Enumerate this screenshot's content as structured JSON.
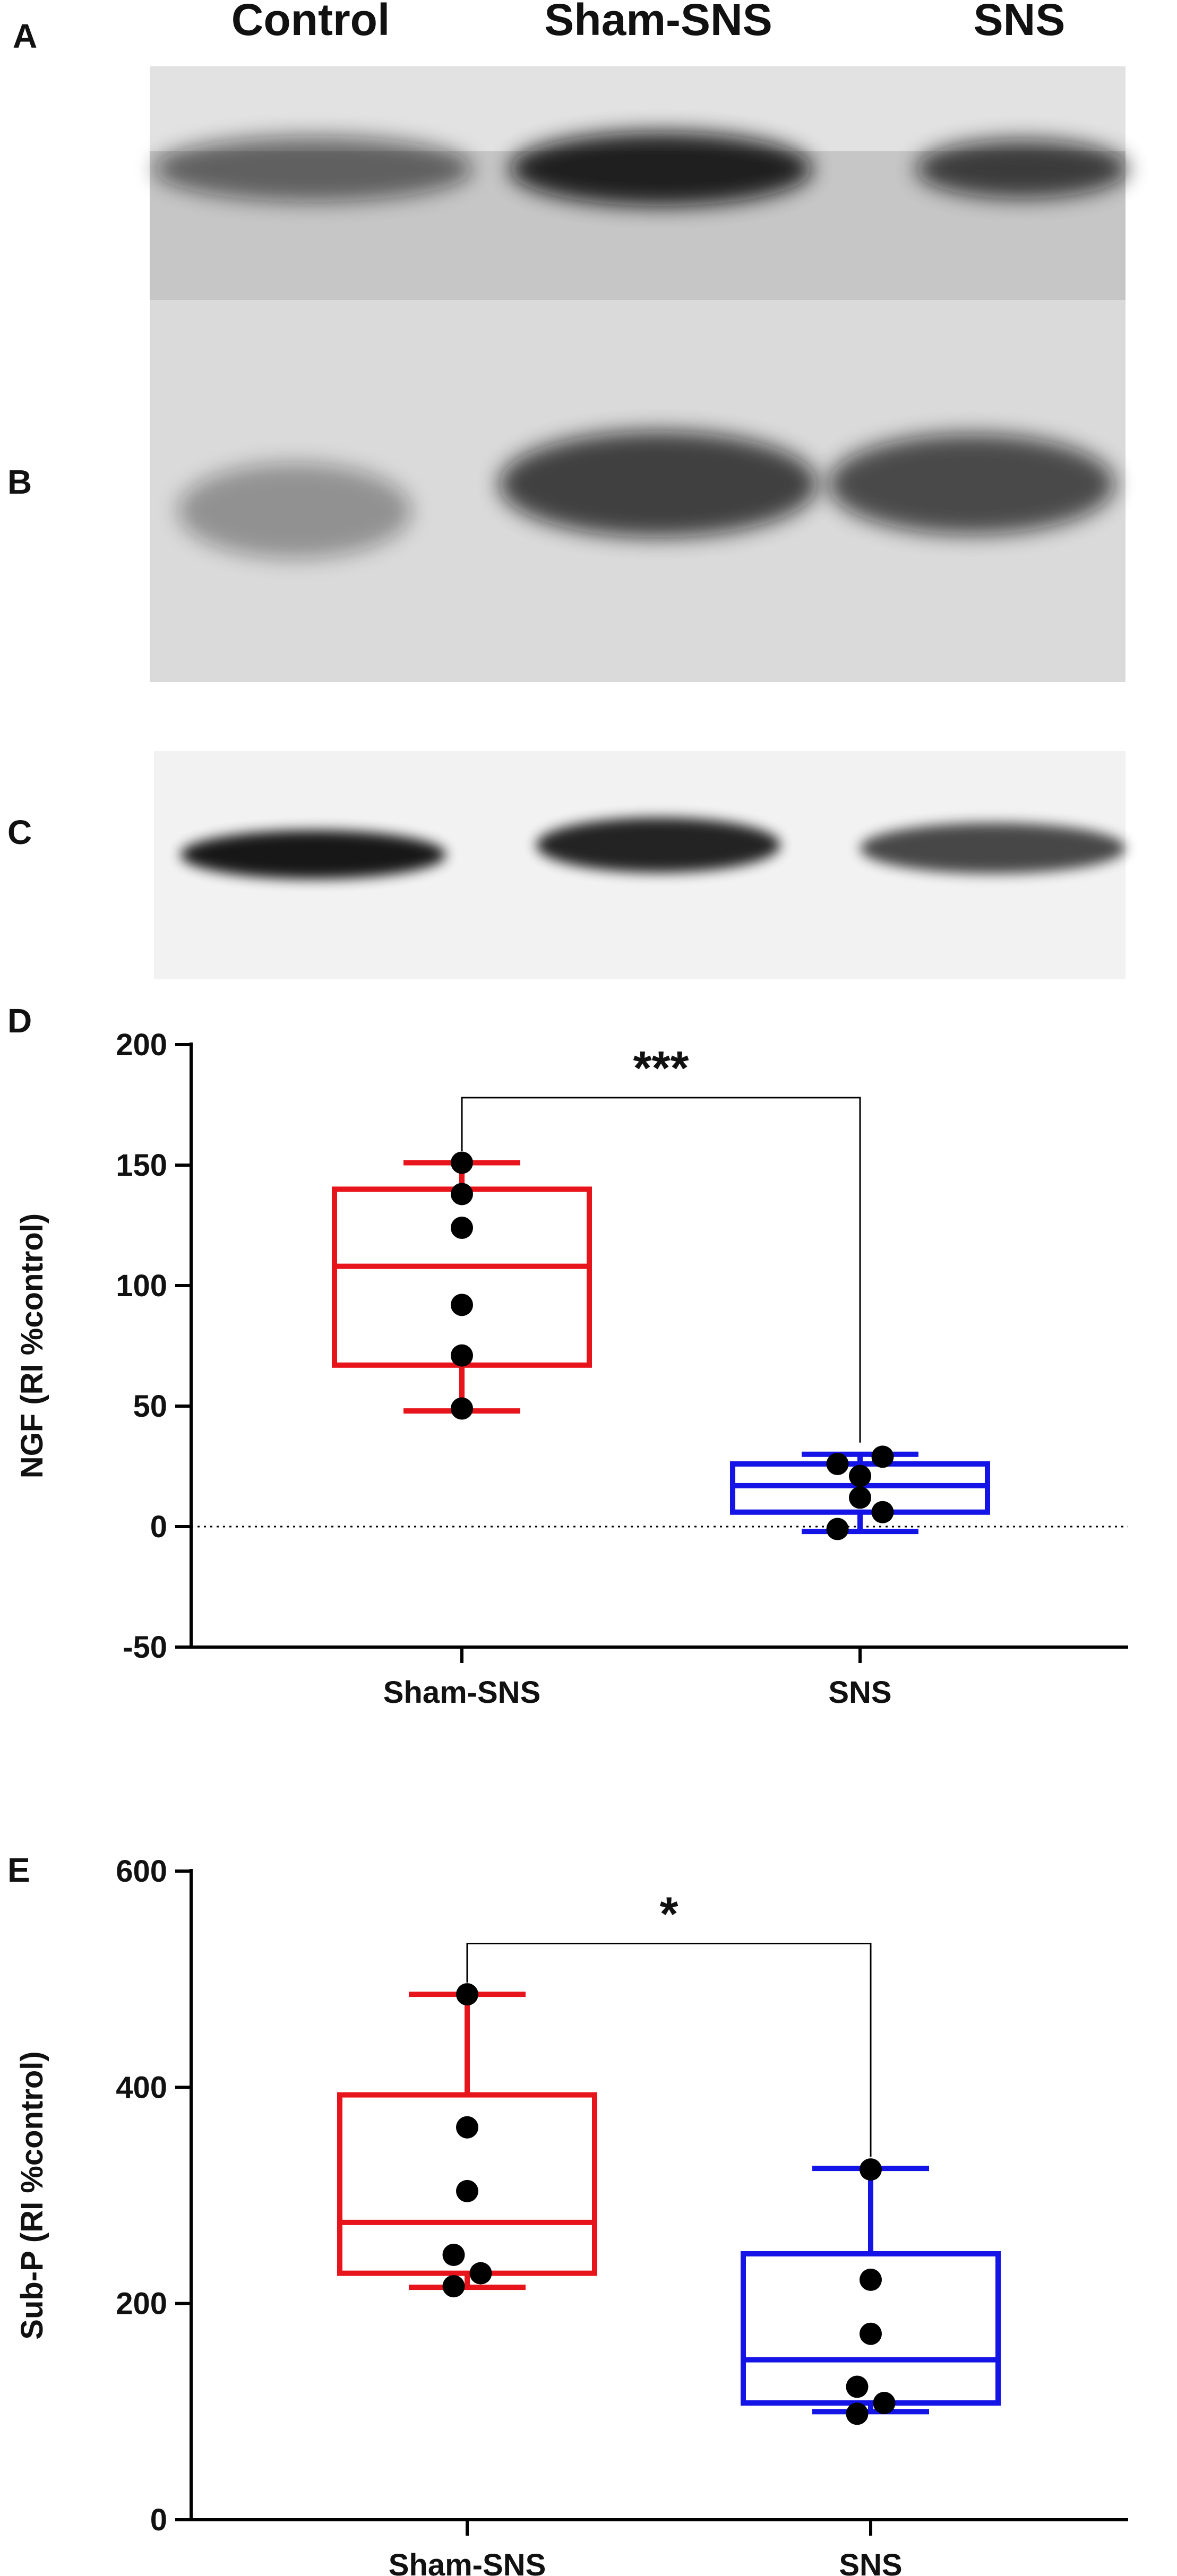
{
  "panels": {
    "a": "A",
    "b": "B",
    "c": "C",
    "d": "D",
    "e": "E"
  },
  "lane_labels": [
    "Control",
    "Sham-SNS",
    "SNS"
  ],
  "blots": [
    {
      "lane_intensity": [
        0.55,
        0.9,
        0.75
      ]
    },
    {
      "lane_intensity": [
        0.35,
        0.75,
        0.7
      ]
    },
    {
      "lane_intensity": [
        0.9,
        0.85,
        0.7
      ]
    }
  ],
  "colors": {
    "sham": "#e8141b",
    "sns": "#1414e6",
    "points": "#000000",
    "axis": "#000000"
  },
  "chart_data": [
    {
      "type": "box",
      "panel": "D",
      "title": "",
      "xlabel": "",
      "ylabel": "NGF (RI %control)",
      "ylim": [
        -50,
        200
      ],
      "yticks": [
        -50,
        0,
        50,
        100,
        150,
        200
      ],
      "zero_line": true,
      "categories": [
        "Sham-SNS",
        "SNS"
      ],
      "series": [
        {
          "whisker_low": 48,
          "q1": 67,
          "median": 108,
          "q3": 140,
          "whisker_high": 151,
          "points": [
            151,
            138,
            124,
            92,
            71,
            49
          ],
          "jitter": [
            0,
            0,
            0,
            0,
            0,
            0
          ]
        },
        {
          "whisker_low": -2,
          "q1": 6,
          "median": 17,
          "q3": 26,
          "whisker_high": 30,
          "points": [
            26,
            29,
            21,
            12,
            6,
            -1
          ],
          "jitter": [
            -0.25,
            0.25,
            0,
            0,
            0.25,
            -0.25
          ]
        }
      ],
      "significance": "***"
    },
    {
      "type": "box",
      "panel": "E",
      "title": "",
      "xlabel": "",
      "ylabel": "Sub-P (RI %control)",
      "ylim": [
        0,
        600
      ],
      "yticks": [
        0,
        200,
        400,
        600
      ],
      "zero_line": false,
      "categories": [
        "Sham-SNS",
        "SNS"
      ],
      "series": [
        {
          "whisker_low": 215,
          "q1": 228,
          "median": 275,
          "q3": 393,
          "whisker_high": 486,
          "points": [
            486,
            363,
            304,
            245,
            228,
            216
          ],
          "jitter": [
            0,
            0,
            0,
            -0.15,
            0.15,
            -0.15
          ]
        },
        {
          "whisker_low": 100,
          "q1": 108,
          "median": 148,
          "q3": 246,
          "whisker_high": 325,
          "points": [
            324,
            222,
            172,
            123,
            108,
            98
          ],
          "jitter": [
            0,
            0,
            0,
            -0.15,
            0.15,
            -0.15
          ]
        }
      ],
      "significance": "*"
    }
  ]
}
